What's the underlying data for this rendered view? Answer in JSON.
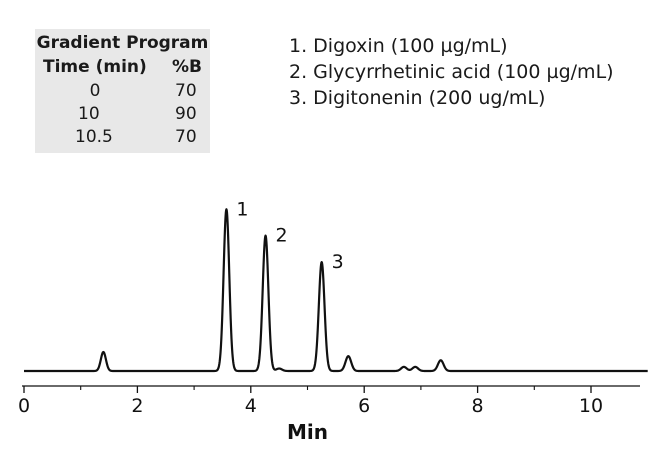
{
  "table": {
    "title": "Gradient Program",
    "headers": [
      "Time (min)",
      "%B"
    ],
    "rows": [
      [
        "0",
        "70"
      ],
      [
        "10",
        "90"
      ],
      [
        "10.5",
        "70"
      ]
    ]
  },
  "legend": [
    "1. Digoxin (100 µg/mL)",
    "2. Glycyrrhetinic acid (100 µg/mL)",
    "3. Digitonenin (200 ug/mL)"
  ],
  "chart_data": {
    "type": "line",
    "title": "",
    "xlabel": "Min",
    "ylabel": "",
    "xlim": [
      0,
      11
    ],
    "xticks": [
      0,
      2,
      4,
      6,
      8,
      10
    ],
    "minor_xticks": [
      1,
      3,
      5,
      7,
      9
    ],
    "grid": false,
    "baseline": 0,
    "peaks": [
      {
        "x": 1.4,
        "height": 0.115,
        "label": ""
      },
      {
        "x": 3.57,
        "height": 0.98,
        "label": "1"
      },
      {
        "x": 4.26,
        "height": 0.82,
        "label": "2"
      },
      {
        "x": 5.25,
        "height": 0.66,
        "label": "3"
      },
      {
        "x": 5.72,
        "height": 0.09,
        "label": ""
      },
      {
        "x": 6.7,
        "height": 0.025,
        "label": ""
      },
      {
        "x": 6.9,
        "height": 0.025,
        "label": ""
      },
      {
        "x": 7.35,
        "height": 0.065,
        "label": ""
      },
      {
        "x": 4.5,
        "height": 0.015,
        "label": ""
      }
    ]
  }
}
